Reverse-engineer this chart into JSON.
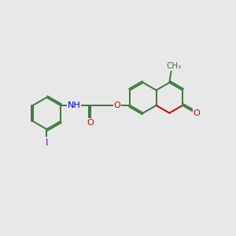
{
  "bg_color": "#e8e8e8",
  "bond_color": "#3a7a3a",
  "bond_width": 1.4,
  "atom_colors": {
    "O": "#cc0000",
    "N": "#0000cc",
    "I": "#800080",
    "C": "#3a7a3a"
  },
  "font_size": 8.0,
  "xlim": [
    0,
    10
  ],
  "ylim": [
    0,
    10
  ]
}
